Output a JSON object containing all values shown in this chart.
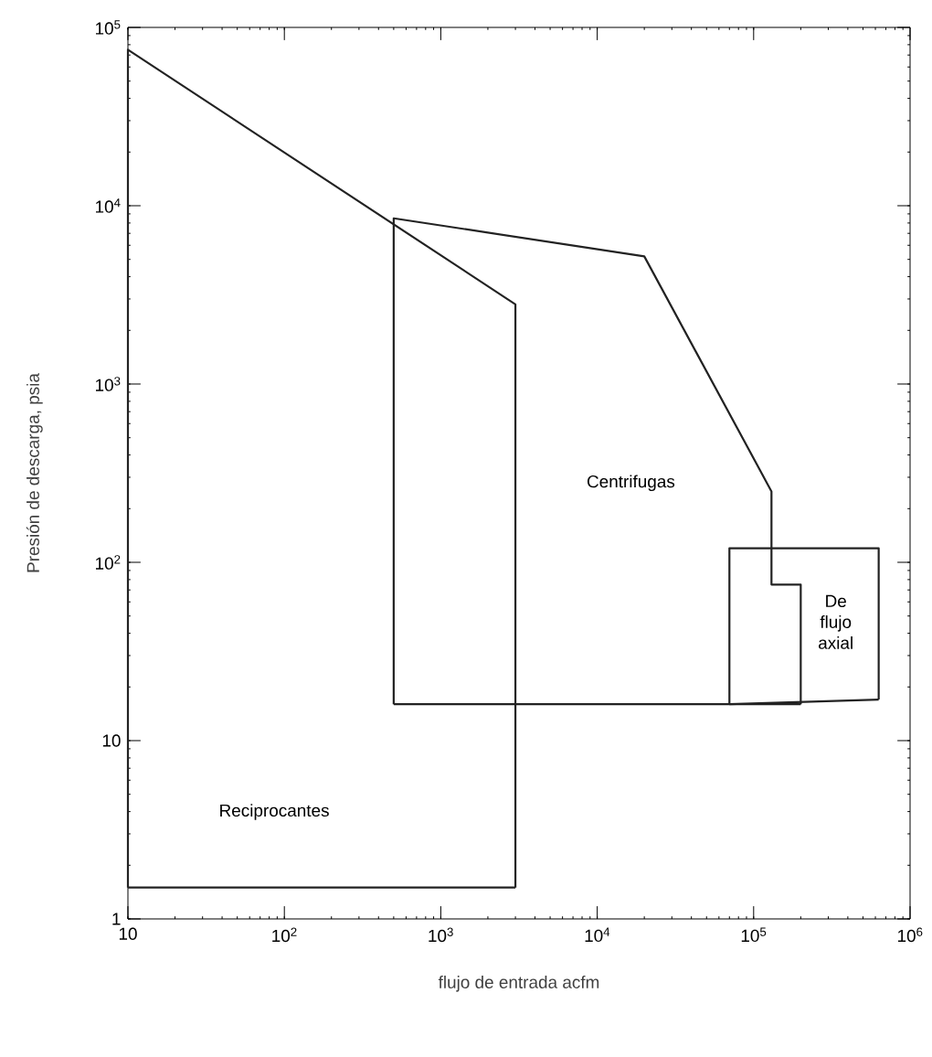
{
  "chart_data": {
    "type": "line",
    "xlabel": "flujo de entrada acfm",
    "ylabel": "Presión de descarga, psia",
    "log": "xy",
    "xlim": [
      10,
      1000000
    ],
    "ylim": [
      1,
      100000
    ],
    "xticks": [
      10,
      {
        "value": 100,
        "label": "10$^{2}$"
      },
      {
        "value": 1000,
        "label": "10$^{3}$"
      },
      {
        "value": 10000,
        "label": "10$^{4}$"
      },
      {
        "value": 100000,
        "label": "10$^{5}$"
      },
      {
        "value": 1000000,
        "label": "10$^{6}$"
      }
    ],
    "yticks": [
      1,
      10,
      {
        "value": 100,
        "label": "10$^{2}$"
      },
      {
        "value": 1000,
        "label": "10$^{3}$"
      },
      {
        "value": 10000,
        "label": "10$^{4}$"
      },
      {
        "value": 100000,
        "label": "10$^{5}$"
      }
    ],
    "grid": false,
    "marker": "none",
    "line_style": "solid",
    "series": [
      {
        "color": "#222222",
        "x": [
          10,
          10,
          3000,
          3000
        ],
        "values": [
          1.5,
          75000,
          2800,
          1.5
        ]
      },
      {
        "color": "#222222",
        "x": [
          10,
          3000
        ],
        "values": [
          1.5,
          1.5
        ]
      },
      {
        "color": "#222222",
        "x": [
          500,
          500,
          20000,
          130000,
          130000,
          200000,
          200000
        ],
        "values": [
          16,
          8500,
          5200,
          250,
          75,
          75,
          16
        ]
      },
      {
        "color": "#222222",
        "x": [
          500,
          200000
        ],
        "values": [
          16,
          16
        ]
      },
      {
        "color": "#222222",
        "x": [
          70000,
          70000,
          630000,
          630000
        ],
        "values": [
          16,
          120,
          120,
          17
        ]
      },
      {
        "color": "#222222",
        "x": [
          70000,
          630000
        ],
        "values": [
          16,
          17
        ]
      }
    ],
    "annotations": [
      "Reciprocantes",
      "Centrifugas",
      "De flujo axial"
    ]
  }
}
